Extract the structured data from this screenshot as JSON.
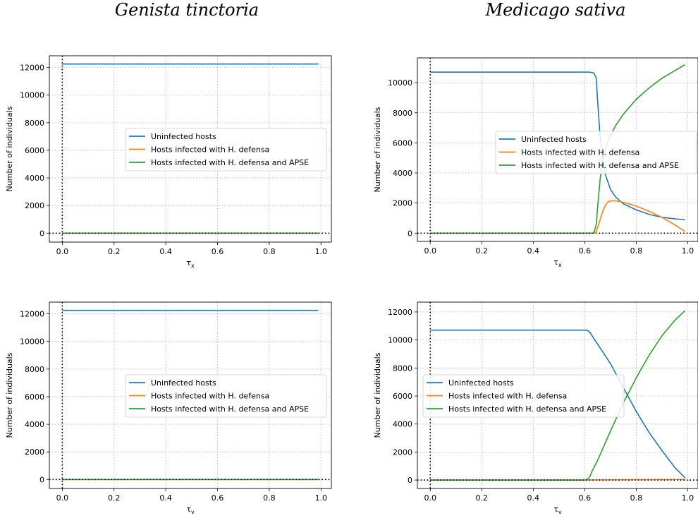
{
  "colors": {
    "uninfected": "#1f77b4",
    "hdefensa": "#ff7f0e",
    "hdefensa_apse": "#2ca02c"
  },
  "columns": [
    {
      "title": "Genista tinctoria"
    },
    {
      "title": "Medicago sativa"
    }
  ],
  "chart_data": [
    {
      "type": "line",
      "column": "Genista tinctoria",
      "xlabel": "τx",
      "xlabel_main": "τ",
      "xlabel_sub": "x",
      "ylabel": "Number of individuals",
      "xlim": [
        -0.05,
        1.04
      ],
      "ylim": [
        -650,
        12850
      ],
      "xticks": [
        0.0,
        0.2,
        0.4,
        0.6,
        0.8,
        1.0
      ],
      "xtick_labels": [
        "0.0",
        "0.2",
        "0.4",
        "0.6",
        "0.8",
        "1.0"
      ],
      "yticks": [
        0,
        2000,
        4000,
        6000,
        8000,
        10000,
        12000
      ],
      "ytick_labels": [
        "0",
        "2000",
        "4000",
        "6000",
        "8000",
        "10000",
        "12000"
      ],
      "grid": true,
      "legend_loc": "center",
      "series": [
        {
          "name": "Uninfected hosts",
          "color_key": "uninfected",
          "x": [
            0.0,
            0.99
          ],
          "y": [
            12250,
            12250
          ]
        },
        {
          "name": "Hosts infected with H. defensa",
          "color_key": "hdefensa",
          "x": [
            0.0,
            0.99
          ],
          "y": [
            0,
            0
          ]
        },
        {
          "name": "Hosts infected with H. defensa and APSE",
          "color_key": "hdefensa_apse",
          "x": [
            0.0,
            0.99
          ],
          "y": [
            0,
            0
          ]
        }
      ]
    },
    {
      "type": "line",
      "column": "Medicago sativa",
      "xlabel": "τx",
      "xlabel_main": "τ",
      "xlabel_sub": "x",
      "ylabel": "Number of individuals",
      "xlim": [
        -0.05,
        1.04
      ],
      "ylim": [
        -550,
        11650
      ],
      "xticks": [
        0.0,
        0.2,
        0.4,
        0.6,
        0.8,
        1.0
      ],
      "xtick_labels": [
        "0.0",
        "0.2",
        "0.4",
        "0.6",
        "0.8",
        "1.0"
      ],
      "yticks": [
        0,
        2000,
        4000,
        6000,
        8000,
        10000
      ],
      "ytick_labels": [
        "0",
        "2000",
        "4000",
        "6000",
        "8000",
        "10000"
      ],
      "grid": true,
      "legend_loc": "right",
      "series": [
        {
          "name": "Uninfected hosts",
          "color_key": "uninfected",
          "x": [
            0.0,
            0.62,
            0.635,
            0.645,
            0.65,
            0.66,
            0.67,
            0.68,
            0.7,
            0.72,
            0.75,
            0.8,
            0.85,
            0.9,
            0.95,
            0.99
          ],
          "y": [
            10700,
            10700,
            10650,
            10300,
            8800,
            6400,
            4800,
            3900,
            2900,
            2400,
            1950,
            1550,
            1250,
            1050,
            950,
            880
          ]
        },
        {
          "name": "Hosts infected with H. defensa",
          "color_key": "hdefensa",
          "x": [
            0.0,
            0.635,
            0.645,
            0.65,
            0.66,
            0.67,
            0.68,
            0.69,
            0.7,
            0.72,
            0.75,
            0.8,
            0.85,
            0.9,
            0.95,
            0.99
          ],
          "y": [
            0,
            0,
            120,
            350,
            900,
            1450,
            1850,
            2070,
            2150,
            2150,
            2050,
            1800,
            1450,
            1050,
            550,
            100
          ]
        },
        {
          "name": "Hosts infected with H. defensa and APSE",
          "color_key": "hdefensa_apse",
          "x": [
            0.0,
            0.635,
            0.645,
            0.65,
            0.66,
            0.67,
            0.68,
            0.7,
            0.72,
            0.75,
            0.8,
            0.85,
            0.9,
            0.95,
            0.99
          ],
          "y": [
            0,
            0,
            600,
            1700,
            3600,
            4800,
            5600,
            6500,
            7150,
            7900,
            8900,
            9650,
            10300,
            10800,
            11200
          ]
        }
      ]
    },
    {
      "type": "line",
      "column": "Genista tinctoria",
      "xlabel": "τv",
      "xlabel_main": "τ",
      "xlabel_sub": "v",
      "ylabel": "Number of individuals",
      "xlim": [
        -0.05,
        1.04
      ],
      "ylim": [
        -650,
        12850
      ],
      "xticks": [
        0.0,
        0.2,
        0.4,
        0.6,
        0.8,
        1.0
      ],
      "xtick_labels": [
        "0.0",
        "0.2",
        "0.4",
        "0.6",
        "0.8",
        "1.0"
      ],
      "yticks": [
        0,
        2000,
        4000,
        6000,
        8000,
        10000,
        12000
      ],
      "ytick_labels": [
        "0",
        "2000",
        "4000",
        "6000",
        "8000",
        "10000",
        "12000"
      ],
      "grid": true,
      "legend_loc": "center",
      "series": [
        {
          "name": "Uninfected hosts",
          "color_key": "uninfected",
          "x": [
            0.0,
            0.99
          ],
          "y": [
            12250,
            12250
          ]
        },
        {
          "name": "Hosts infected with H. defensa",
          "color_key": "hdefensa",
          "x": [
            0.0,
            0.99
          ],
          "y": [
            0,
            0
          ]
        },
        {
          "name": "Hosts infected with H. defensa and APSE",
          "color_key": "hdefensa_apse",
          "x": [
            0.0,
            0.99
          ],
          "y": [
            0,
            0
          ]
        }
      ]
    },
    {
      "type": "line",
      "column": "Medicago sativa",
      "xlabel": "τv",
      "xlabel_main": "τ",
      "xlabel_sub": "v",
      "ylabel": "Number of individuals",
      "xlim": [
        -0.05,
        1.04
      ],
      "ylim": [
        -600,
        12700
      ],
      "xticks": [
        0.0,
        0.2,
        0.4,
        0.6,
        0.8,
        1.0
      ],
      "xtick_labels": [
        "0.0",
        "0.2",
        "0.4",
        "0.6",
        "0.8",
        "1.0"
      ],
      "yticks": [
        0,
        2000,
        4000,
        6000,
        8000,
        10000,
        12000
      ],
      "ytick_labels": [
        "0",
        "2000",
        "4000",
        "6000",
        "8000",
        "10000",
        "12000"
      ],
      "grid": true,
      "legend_loc": "center-left",
      "series": [
        {
          "name": "Uninfected hosts",
          "color_key": "uninfected",
          "x": [
            0.0,
            0.6,
            0.61,
            0.62,
            0.63,
            0.65,
            0.7,
            0.75,
            0.8,
            0.85,
            0.9,
            0.95,
            0.99
          ],
          "y": [
            10700,
            10700,
            10690,
            10550,
            10250,
            9700,
            8300,
            6600,
            4900,
            3400,
            2100,
            900,
            150
          ]
        },
        {
          "name": "Hosts infected with H. defensa",
          "color_key": "hdefensa",
          "x": [
            0.0,
            0.6,
            0.7,
            0.8,
            0.9,
            0.99
          ],
          "y": [
            0,
            0,
            20,
            30,
            40,
            40
          ]
        },
        {
          "name": "Hosts infected with H. defensa and APSE",
          "color_key": "hdefensa_apse",
          "x": [
            0.0,
            0.6,
            0.61,
            0.62,
            0.63,
            0.65,
            0.7,
            0.75,
            0.8,
            0.85,
            0.9,
            0.95,
            0.99
          ],
          "y": [
            0,
            0,
            50,
            250,
            700,
            1400,
            3500,
            5500,
            7300,
            8900,
            10300,
            11400,
            12100
          ]
        }
      ]
    }
  ]
}
